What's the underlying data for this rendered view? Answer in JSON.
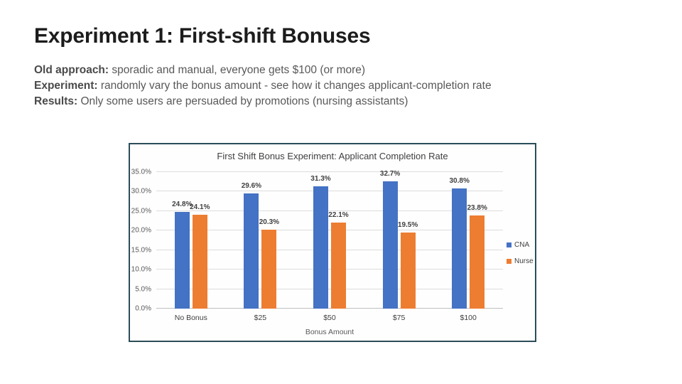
{
  "slide": {
    "title": "Experiment 1: First-shift Bonuses",
    "bullets": [
      {
        "label": "Old approach:",
        "text": " sporadic and manual, everyone gets $100 (or more)"
      },
      {
        "label": "Experiment:",
        "text": " randomly vary the bonus amount - see how it changes applicant-completion rate"
      },
      {
        "label": "Results:",
        "text": " Only some users are persuaded by promotions (nursing assistants)"
      }
    ]
  },
  "chart_data": {
    "type": "bar",
    "title": "First Shift Bonus Experiment: Applicant Completion Rate",
    "xlabel": "Bonus Amount",
    "ylabel": "",
    "categories": [
      "No Bonus",
      "$25",
      "$50",
      "$75",
      "$100"
    ],
    "series": [
      {
        "name": "CNA",
        "color": "#4472C4",
        "values": [
          24.8,
          29.6,
          31.3,
          32.7,
          30.8
        ]
      },
      {
        "name": "Nurse",
        "color": "#ED7D31",
        "values": [
          24.1,
          20.3,
          22.1,
          19.5,
          23.8
        ]
      }
    ],
    "ylim": [
      0,
      35
    ],
    "ytick_step": 5,
    "ytick_format": "0.0%",
    "grid": true,
    "legend_position": "right",
    "value_labels": true
  },
  "colors": {
    "chart_border": "#2b4e58",
    "gridline": "#dcdcdc",
    "axis_line": "#bfbfbf",
    "chart_text": "#404040",
    "tick_text": "#595959"
  }
}
